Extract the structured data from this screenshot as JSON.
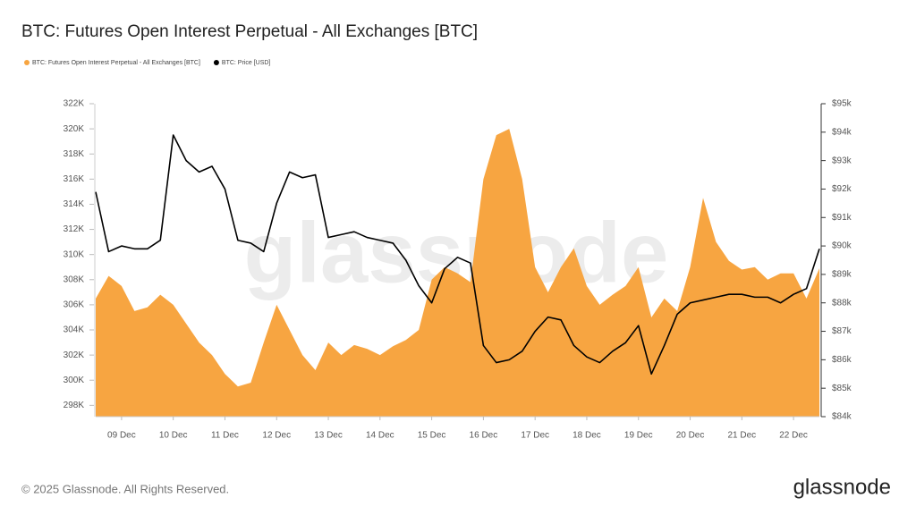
{
  "chart_data": {
    "type": "area_line_dual",
    "title": "BTC: Futures Open Interest Perpetual - All Exchanges [BTC]",
    "watermark": "glassnode",
    "categories": [
      null,
      null,
      "09 Dec",
      null,
      null,
      null,
      "10 Dec",
      null,
      null,
      null,
      "11 Dec",
      null,
      null,
      null,
      "12 Dec",
      null,
      null,
      null,
      "13 Dec",
      null,
      null,
      null,
      "14 Dec",
      null,
      null,
      null,
      "15 Dec",
      null,
      null,
      null,
      "16 Dec",
      null,
      null,
      null,
      "17 Dec",
      null,
      null,
      null,
      "18 Dec",
      null,
      null,
      null,
      "19 Dec",
      null,
      null,
      null,
      "20 Dec",
      null,
      null,
      null,
      "21 Dec",
      null,
      null,
      null,
      "22 Dec",
      null,
      null
    ],
    "series": [
      {
        "name": "BTC: Futures Open Interest Perpetual - All Exchanges [BTC]",
        "color": "#f7a541",
        "kind": "area",
        "values": [
          306500,
          308300,
          307500,
          305500,
          305800,
          306800,
          306000,
          304500,
          303000,
          302000,
          300500,
          299500,
          299800,
          303000,
          306000,
          304000,
          302000,
          300800,
          303000,
          302000,
          302800,
          302500,
          302000,
          302700,
          303200,
          304000,
          308000,
          309000,
          308500,
          307800,
          316000,
          319500,
          320000,
          316000,
          309000,
          307000,
          309000,
          310500,
          307500,
          306000,
          306800,
          307500,
          309000,
          305000,
          306500,
          305500,
          309000,
          314500,
          311000,
          309500,
          308800,
          309000,
          308000,
          308500,
          308500,
          306500,
          308900
        ]
      },
      {
        "name": "BTC: Price [USD]",
        "color": "#000000",
        "kind": "line",
        "axis": "y2",
        "values": [
          91900,
          89800,
          90000,
          89900,
          89900,
          90200,
          93900,
          93000,
          92600,
          92800,
          92000,
          90200,
          90100,
          89800,
          91500,
          92600,
          92400,
          92500,
          90300,
          90400,
          90500,
          90300,
          90200,
          90100,
          89500,
          88600,
          88000,
          89200,
          89600,
          89400,
          86500,
          85900,
          86000,
          86300,
          87000,
          87500,
          87400,
          86500,
          86100,
          85900,
          86300,
          86600,
          87200,
          85500,
          86500,
          87600,
          88000,
          88100,
          88200,
          88300,
          88300,
          88200,
          88200,
          88000,
          88300,
          88500,
          89900
        ]
      }
    ],
    "ylim": [
      297100,
      322000
    ],
    "yticks": [
      {
        "value": 298000,
        "label": "298K"
      },
      {
        "value": 300000,
        "label": "300K"
      },
      {
        "value": 302000,
        "label": "302K"
      },
      {
        "value": 304000,
        "label": "304K"
      },
      {
        "value": 306000,
        "label": "306K"
      },
      {
        "value": 308000,
        "label": "308K"
      },
      {
        "value": 310000,
        "label": "310K"
      },
      {
        "value": 312000,
        "label": "312K"
      },
      {
        "value": 314000,
        "label": "314K"
      },
      {
        "value": 316000,
        "label": "316K"
      },
      {
        "value": 318000,
        "label": "318K"
      },
      {
        "value": 320000,
        "label": "320K"
      },
      {
        "value": 322000,
        "label": "322K"
      }
    ],
    "y2lim": [
      84000,
      95000
    ],
    "y2ticks": [
      {
        "value": 84000,
        "label": "$84k"
      },
      {
        "value": 85000,
        "label": "$85k"
      },
      {
        "value": 86000,
        "label": "$86k"
      },
      {
        "value": 87000,
        "label": "$87k"
      },
      {
        "value": 88000,
        "label": "$88k"
      },
      {
        "value": 89000,
        "label": "$89k"
      },
      {
        "value": 90000,
        "label": "$90k"
      },
      {
        "value": 91000,
        "label": "$91k"
      },
      {
        "value": 92000,
        "label": "$92k"
      },
      {
        "value": 93000,
        "label": "$93k"
      },
      {
        "value": 94000,
        "label": "$94k"
      },
      {
        "value": 95000,
        "label": "$95k"
      }
    ],
    "grid": false
  },
  "footer": {
    "copyright": "© 2025 Glassnode. All Rights Reserved.",
    "logo": "glassnode"
  }
}
